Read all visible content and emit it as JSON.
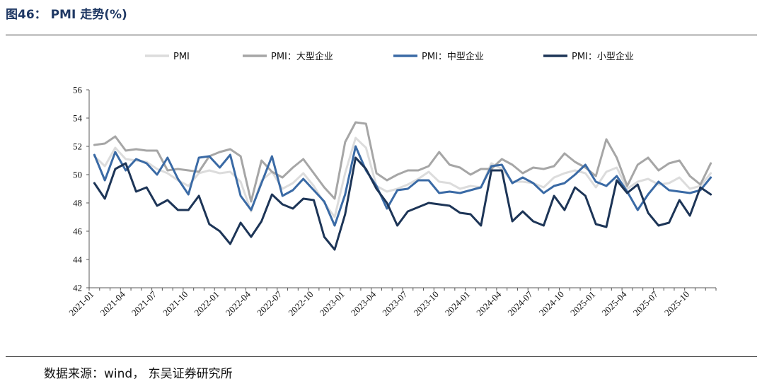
{
  "figure": {
    "title": "图46： PMI 走势(%)",
    "source": "数据来源：wind， 东吴证券研究所"
  },
  "chart_data": {
    "type": "line",
    "title": "",
    "xlabel": "",
    "ylabel": "",
    "ylim": [
      42,
      56
    ],
    "yticks": [
      42,
      44,
      46,
      48,
      50,
      52,
      54,
      56
    ],
    "grid": false,
    "legend_position": "top",
    "x": [
      "2021-01",
      "2021-02",
      "2021-03",
      "2021-04",
      "2021-05",
      "2021-06",
      "2021-07",
      "2021-08",
      "2021-09",
      "2021-10",
      "2021-11",
      "2021-12",
      "2022-01",
      "2022-02",
      "2022-03",
      "2022-04",
      "2022-05",
      "2022-06",
      "2022-07",
      "2022-08",
      "2022-09",
      "2022-10",
      "2022-11",
      "2022-12",
      "2023-01",
      "2023-02",
      "2023-03",
      "2023-04",
      "2023-05",
      "2023-06",
      "2023-07",
      "2023-08",
      "2023-09",
      "2023-10",
      "2023-11",
      "2023-12",
      "2024-01",
      "2024-02",
      "2024-03",
      "2024-04",
      "2024-05",
      "2024-06",
      "2024-07",
      "2024-08",
      "2024-09",
      "2024-10",
      "2024-11",
      "2024-12",
      "2025-01",
      "2025-02",
      "2025-03",
      "2025-04",
      "2025-05",
      "2025-06",
      "2025-07",
      "2025-08",
      "2025-09",
      "2025-10",
      "2025-11",
      "2025-12"
    ],
    "xtick_labels": [
      "2021-01",
      "2021-04",
      "2021-07",
      "2021-10",
      "2022-01",
      "2022-04",
      "2022-07",
      "2022-10",
      "2023-01",
      "2023-04",
      "2023-07",
      "2023-10",
      "2024-01",
      "2024-04",
      "2024-07",
      "2024-10",
      "2025-01",
      "2025-04",
      "2025-07",
      "2025-10"
    ],
    "series": [
      {
        "name": "PMI",
        "color": "#dcdcdc",
        "values": [
          51.3,
          50.6,
          51.9,
          51.1,
          51.0,
          50.9,
          50.4,
          50.1,
          49.6,
          49.2,
          50.1,
          50.3,
          50.1,
          50.2,
          49.5,
          47.4,
          49.6,
          50.2,
          49.0,
          49.4,
          50.1,
          49.2,
          48.0,
          47.0,
          50.1,
          52.6,
          51.9,
          49.2,
          48.8,
          49.0,
          49.3,
          49.7,
          50.2,
          49.5,
          49.4,
          49.0,
          49.2,
          49.1,
          50.8,
          50.4,
          49.5,
          49.5,
          49.4,
          49.1,
          49.8,
          50.1,
          50.3,
          50.1,
          49.1,
          50.2,
          50.5,
          49.0,
          49.5,
          49.7,
          49.3,
          49.4,
          49.8,
          49.0,
          49.2,
          50.1
        ]
      },
      {
        "name": "PMI：大型企业",
        "color": "#a6a6a6",
        "values": [
          52.1,
          52.2,
          52.7,
          51.7,
          51.8,
          51.7,
          51.7,
          50.3,
          50.4,
          50.3,
          50.2,
          51.3,
          51.6,
          51.8,
          51.3,
          48.1,
          51.0,
          50.2,
          49.8,
          50.5,
          51.1,
          50.1,
          49.1,
          48.3,
          52.3,
          53.7,
          53.6,
          50.1,
          49.6,
          50.0,
          50.3,
          50.3,
          50.6,
          51.6,
          50.7,
          50.5,
          50.0,
          50.4,
          50.4,
          51.1,
          50.7,
          50.1,
          50.5,
          50.4,
          50.6,
          51.5,
          50.9,
          50.5,
          49.9,
          52.5,
          51.2,
          49.2,
          50.7,
          51.2,
          50.3,
          50.8,
          51.0,
          49.9,
          49.3,
          50.8
        ]
      },
      {
        "name": "PMI：中型企业",
        "color": "#3a6aa5",
        "values": [
          51.4,
          49.6,
          51.6,
          50.3,
          51.1,
          50.8,
          50.0,
          51.2,
          49.7,
          48.6,
          51.2,
          51.3,
          50.5,
          51.4,
          48.5,
          47.5,
          49.4,
          51.3,
          48.5,
          48.9,
          49.7,
          48.9,
          48.1,
          46.4,
          48.6,
          52.0,
          50.3,
          49.2,
          47.6,
          48.9,
          49.0,
          49.6,
          49.6,
          48.7,
          48.8,
          48.7,
          48.9,
          49.1,
          50.6,
          50.7,
          49.4,
          49.8,
          49.4,
          48.7,
          49.2,
          49.4,
          50.0,
          50.7,
          49.5,
          49.2,
          49.9,
          48.8,
          47.5,
          48.6,
          49.5,
          48.9,
          48.8,
          48.7,
          48.9,
          49.8
        ]
      },
      {
        "name": "PMI：小型企业",
        "color": "#1d3557",
        "values": [
          49.4,
          48.3,
          50.4,
          50.8,
          48.8,
          49.1,
          47.8,
          48.2,
          47.5,
          47.5,
          48.5,
          46.5,
          46.0,
          45.1,
          46.6,
          45.6,
          46.7,
          48.6,
          47.9,
          47.6,
          48.3,
          48.2,
          45.6,
          44.7,
          47.2,
          51.2,
          50.4,
          49.0,
          48.0,
          46.4,
          47.4,
          47.7,
          48.0,
          47.9,
          47.8,
          47.3,
          47.2,
          46.4,
          50.3,
          50.3,
          46.7,
          47.4,
          46.7,
          46.4,
          48.5,
          47.5,
          49.1,
          48.5,
          46.5,
          46.3,
          49.6,
          48.7,
          49.3,
          47.3,
          46.4,
          46.6,
          48.2,
          47.1,
          49.1,
          48.6
        ]
      }
    ]
  }
}
